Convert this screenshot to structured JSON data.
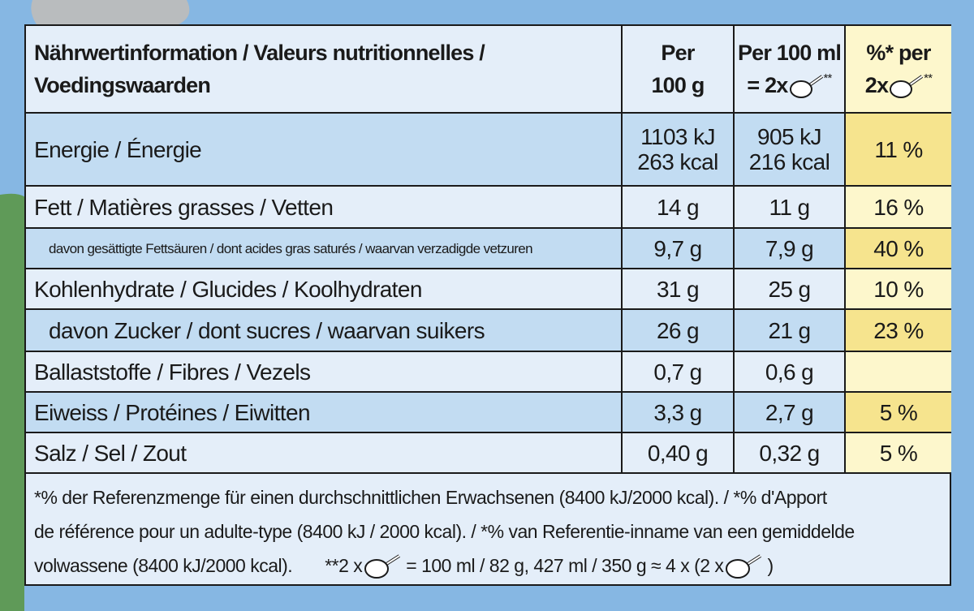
{
  "table": {
    "header": {
      "label": [
        "Nährwertinformation / Valeurs nutritionnelles /",
        "Voedingswaarden"
      ],
      "per_100g": [
        "Per",
        "100 g"
      ],
      "per_100ml": [
        "Per 100 ml",
        "= 2x",
        "**"
      ],
      "percent": [
        "%* per",
        "2x",
        "**"
      ]
    },
    "rows": [
      {
        "label": "Energie / Énergie",
        "per_100g": [
          "1103 kJ",
          "263 kcal"
        ],
        "per_100ml": [
          "905 kJ",
          "216 kcal"
        ],
        "percent": "11 %"
      },
      {
        "label": "Fett / Matières grasses / Vetten",
        "per_100g": [
          "14 g"
        ],
        "per_100ml": [
          "11 g"
        ],
        "percent": "16 %"
      },
      {
        "label": "davon gesättigte Fettsäuren / dont acides gras saturés / waarvan verzadigde vetzuren",
        "per_100g": [
          "9,7 g"
        ],
        "per_100ml": [
          "7,9 g"
        ],
        "percent": "40 %"
      },
      {
        "label": "Kohlenhydrate / Glucides / Koolhydraten",
        "per_100g": [
          "31 g"
        ],
        "per_100ml": [
          "25 g"
        ],
        "percent": "10 %"
      },
      {
        "label": "davon Zucker / dont sucres / waarvan suikers",
        "per_100g": [
          "26 g"
        ],
        "per_100ml": [
          "21 g"
        ],
        "percent": "23 %"
      },
      {
        "label": "Ballaststoffe / Fibres / Vezels",
        "per_100g": [
          "0,7 g"
        ],
        "per_100ml": [
          "0,6 g"
        ]
      },
      {
        "label": "Eiweiss / Protéines / Eiwitten",
        "per_100g": [
          "3,3 g"
        ],
        "per_100ml": [
          "2,7 g"
        ],
        "percent": "5 %"
      },
      {
        "label": "Salz / Sel / Zout",
        "per_100g": [
          "0,40 g"
        ],
        "per_100ml": [
          "0,32 g"
        ],
        "percent": "5 %"
      }
    ],
    "footnote": [
      "*% der Referenzmenge für einen durchschnittlichen Erwachsenen (8400 kJ/2000 kcal). / *% d'Apport",
      "de référence pour un adulte-type (8400 kJ / 2000 kcal). / *% van Referentie-inname van een gemiddelde",
      "volwassene (8400 kJ/2000 kcal).",
      "**2 x",
      "= 100 ml / 82 g, 427 ml / 350 g ≈ 4 x (2 x",
      ")"
    ]
  }
}
